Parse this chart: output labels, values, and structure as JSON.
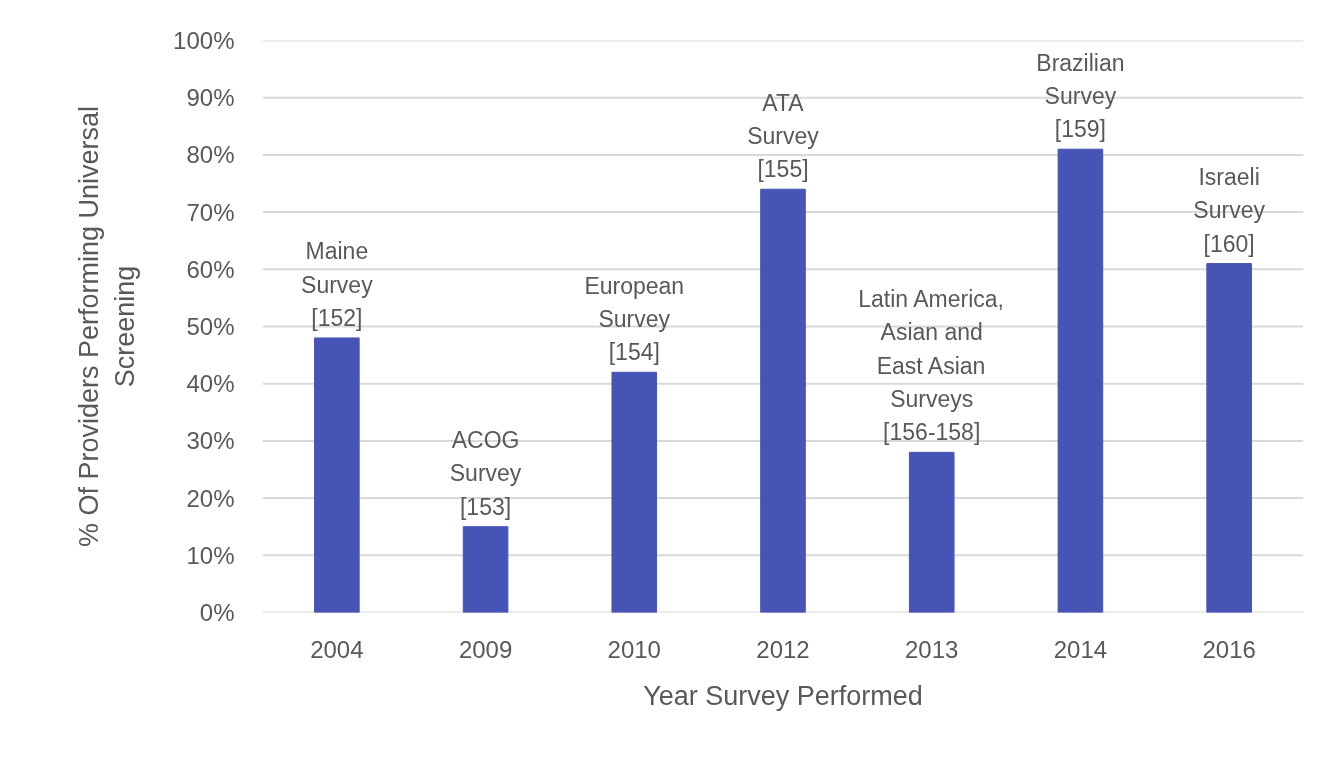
{
  "chart_data": {
    "type": "bar",
    "xlabel": "Year Survey Performed",
    "ylabel": "% Of Providers Performing Universal\nScreening",
    "categories": [
      "2004",
      "2009",
      "2010",
      "2012",
      "2013",
      "2014",
      "2016"
    ],
    "values": [
      48,
      15,
      42,
      74,
      28,
      81,
      61
    ],
    "color": "#4655b5",
    "ylim": [
      0,
      100
    ],
    "yticks": [
      {
        "value": 0,
        "label": "0%"
      },
      {
        "value": 10,
        "label": "10%"
      },
      {
        "value": 20,
        "label": "20%"
      },
      {
        "value": 30,
        "label": "30%"
      },
      {
        "value": 40,
        "label": "40%"
      },
      {
        "value": 50,
        "label": "50%"
      },
      {
        "value": 60,
        "label": "60%"
      },
      {
        "value": 70,
        "label": "70%"
      },
      {
        "value": 80,
        "label": "80%"
      },
      {
        "value": 90,
        "label": "90%"
      },
      {
        "value": 100,
        "label": "100%"
      }
    ],
    "grid": "y",
    "annotations": [
      {
        "text": "Maine\nSurvey\n[152]",
        "x": "2004",
        "y": 48
      },
      {
        "text": "ACOG\nSurvey\n[153]",
        "x": "2009",
        "y": 15
      },
      {
        "text": "European\nSurvey\n[154]",
        "x": "2010",
        "y": 42
      },
      {
        "text": "ATA\nSurvey\n[155]",
        "x": "2012",
        "y": 74
      },
      {
        "text": "Latin America,\nAsian and\nEast Asian\nSurveys\n[156-158]",
        "x": "2013",
        "y": 28
      },
      {
        "text": "Brazilian\nSurvey\n[159]",
        "x": "2014",
        "y": 81
      },
      {
        "text": "Israeli\nSurvey\n[160]",
        "x": "2016",
        "y": 61
      }
    ]
  }
}
